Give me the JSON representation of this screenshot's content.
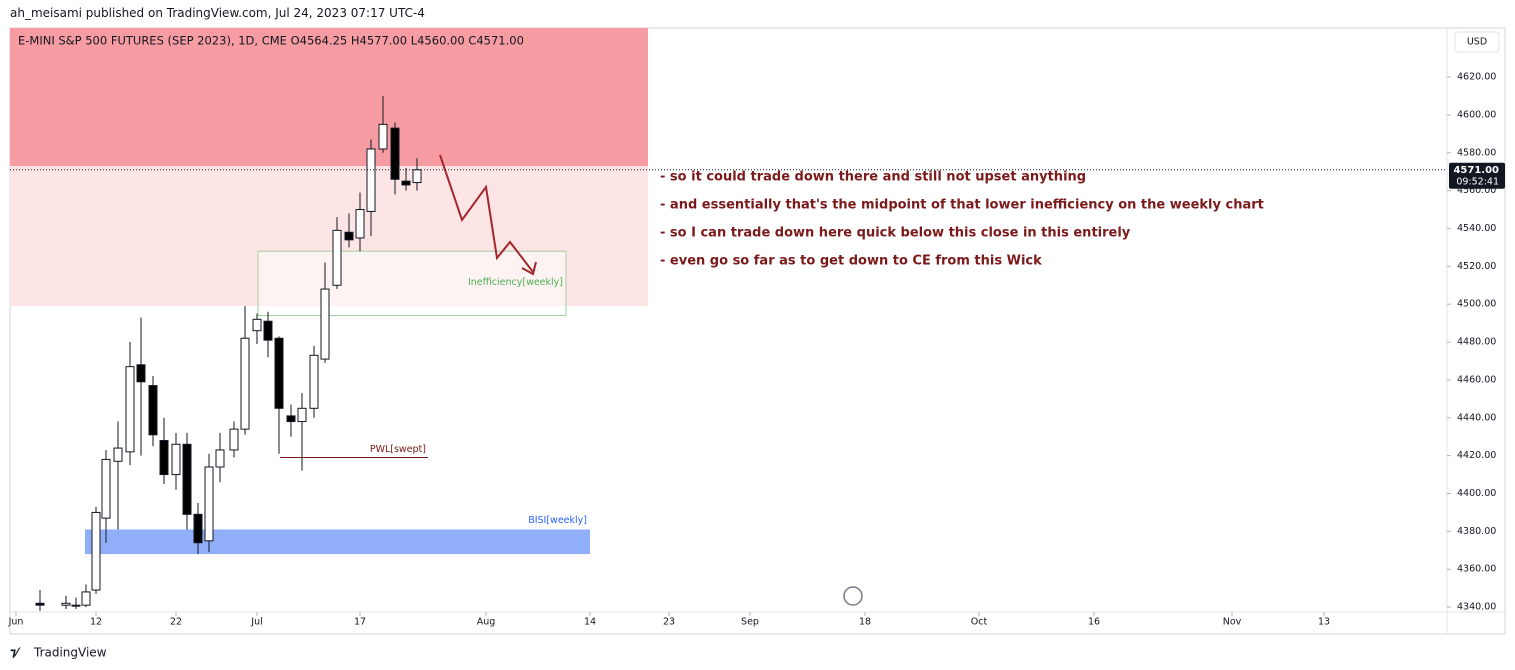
{
  "published": "ah_meisami published on TradingView.com, Jul 24, 2023 07:17 UTC-4",
  "footer": "TradingView",
  "currency": "USD",
  "chart_data": {
    "type": "candlestick",
    "title": "E-MINI S&P 500 FUTURES (SEP 2023), 1D, CME  O4564.25  H4577.00  L4560.00  C4571.00",
    "x": [
      2.4,
      5,
      6,
      7,
      8,
      9,
      10.2,
      11.4,
      12.5,
      13.7,
      14.8,
      16,
      17.1,
      18.2,
      19.3,
      20.4,
      21.8,
      22.9,
      24.1,
      25.2,
      26.3,
      27.5,
      28.6,
      29.8,
      30.9,
      32.1,
      33.3,
      34.4,
      35.5,
      36.7,
      37.9,
      39,
      40.1
    ],
    "open": [
      4342,
      4341,
      4341,
      4341,
      4349,
      4387,
      4417,
      4422,
      4468,
      4457,
      4428,
      4410,
      4426,
      4389,
      4375,
      4414,
      4423,
      4434,
      4486,
      4491,
      4482,
      4441,
      4438,
      4445,
      4471,
      4510,
      4538,
      4535,
      4549,
      4582,
      4593,
      4565,
      4564.25
    ],
    "high": [
      4349,
      4346,
      4345,
      4352,
      4393,
      4423,
      4438,
      4480,
      4493,
      4462,
      4440,
      4432,
      4432,
      4395,
      4421,
      4432,
      4438,
      4499,
      4495,
      4496,
      4483,
      4447,
      4453,
      4478,
      4522,
      4546,
      4548,
      4559,
      4587,
      4610,
      4596,
      4572,
      4577
    ],
    "low": [
      4338,
      4339,
      4339,
      4340,
      4347,
      4374,
      4381,
      4415,
      4420,
      4425,
      4405,
      4402,
      4381,
      4368,
      4369,
      4406,
      4419,
      4431,
      4479,
      4472,
      4421,
      4430,
      4412,
      4440,
      4469,
      4508,
      4530,
      4528,
      4536,
      4580,
      4558,
      4560,
      4560
    ],
    "close": [
      4341,
      4342,
      4341,
      4348,
      4390,
      4418,
      4424,
      4467,
      4459,
      4431,
      4410,
      4426,
      4389,
      4374,
      4414,
      4423,
      4434,
      4482,
      4492,
      4481,
      4445,
      4438,
      4445,
      4473,
      4508,
      4539,
      4534,
      4550,
      4582,
      4595,
      4566,
      4563,
      4571
    ],
    "up_color": "#ffffff",
    "down_color": "#000000",
    "wick_color": "#131722",
    "xlim": [
      -0.6,
      143.1
    ],
    "xticks": [
      {
        "value": 0,
        "label": "Jun"
      },
      {
        "value": 8,
        "label": "12"
      },
      {
        "value": 16,
        "label": "22"
      },
      {
        "value": 24.1,
        "label": "Jul"
      },
      {
        "value": 34.4,
        "label": "17"
      },
      {
        "value": 47,
        "label": "Aug"
      },
      {
        "value": 57.4,
        "label": "14"
      },
      {
        "value": 65.3,
        "label": "23"
      },
      {
        "value": 73.4,
        "label": "Sep"
      },
      {
        "value": 84.9,
        "label": "18"
      },
      {
        "value": 96.3,
        "label": "Oct"
      },
      {
        "value": 107.8,
        "label": "16"
      },
      {
        "value": 121.6,
        "label": "Nov"
      },
      {
        "value": 130.8,
        "label": "13"
      }
    ],
    "ylim": [
      4337.4,
      4645.9
    ],
    "yticks": [
      {
        "value": 4340,
        "label": "4340.00"
      },
      {
        "value": 4360,
        "label": "4360.00"
      },
      {
        "value": 4380,
        "label": "4380.00"
      },
      {
        "value": 4400,
        "label": "4400.00"
      },
      {
        "value": 4420,
        "label": "4420.00"
      },
      {
        "value": 4440,
        "label": "4440.00"
      },
      {
        "value": 4460,
        "label": "4460.00"
      },
      {
        "value": 4480,
        "label": "4480.00"
      },
      {
        "value": 4500,
        "label": "4500.00"
      },
      {
        "value": 4520,
        "label": "4520.00"
      },
      {
        "value": 4540,
        "label": "4540.00"
      },
      {
        "value": 4560,
        "label": "4560.00"
      },
      {
        "value": 4580,
        "label": "4580.00"
      },
      {
        "value": 4600,
        "label": "4600.00"
      },
      {
        "value": 4620,
        "label": "4620.00"
      }
    ],
    "last_price": {
      "value": 4571,
      "label": "4571.00"
    },
    "countdown": "09:52:41",
    "zones": [
      {
        "xlim": [
          -0.6,
          63.2
        ],
        "ylim": [
          4573,
          4645.9
        ],
        "color": "#f79ca3"
      },
      {
        "xlim": [
          -0.6,
          63.2
        ],
        "ylim": [
          4499,
          4573
        ],
        "color": "#fde4e5"
      },
      {
        "xlim": [
          24.2,
          55
        ],
        "ylim": [
          4494,
          4528
        ],
        "color": "#ffffff",
        "border": "#9fd19f",
        "label": "Inefficiency[weekly]",
        "label_color": "#4caf50"
      },
      {
        "xlim": [
          6.9,
          57.4
        ],
        "ylim": [
          4368,
          4381
        ],
        "color": "#90aff8",
        "label": "BISI[weekly]",
        "label_color": "#2962ff"
      }
    ],
    "levels": [
      {
        "xlim": [
          26.4,
          41.2
        ],
        "value": 4419,
        "label": "PWL[swept]",
        "color": "#7b1a1a"
      }
    ],
    "annotations": [
      "- so it could trade down there and still not upset anything",
      "- and essentially that's the midpoint of that lower inefficiency on the weekly chart",
      "- so I can trade down here quick below this close in this entirely",
      "- even go so far as to get down to CE from this Wick"
    ]
  }
}
